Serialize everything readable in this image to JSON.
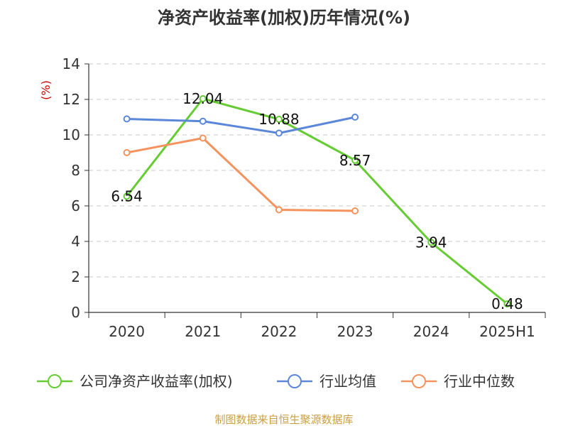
{
  "chart_data": {
    "type": "line",
    "title": "净资产收益率(加权)历年情况(%)",
    "ylabel": "(%)",
    "categories": [
      "2020",
      "2021",
      "2022",
      "2023",
      "2024",
      "2025H1"
    ],
    "ylim": [
      0,
      14
    ],
    "yticks": [
      0,
      2,
      4,
      6,
      8,
      10,
      12,
      14
    ],
    "grid": true,
    "legend_position": "bottom",
    "series": [
      {
        "name": "公司净资产收益率(加权)",
        "color": "#66cc33",
        "values": [
          6.54,
          12.04,
          10.88,
          8.57,
          3.94,
          0.48
        ],
        "labels": [
          "6.54",
          "12.04",
          "10.88",
          "8.57",
          "3.94",
          "0.48"
        ]
      },
      {
        "name": "行业均值",
        "color": "#5b87d9",
        "values": [
          10.9,
          10.77,
          10.1,
          11.0,
          null,
          null
        ]
      },
      {
        "name": "行业中位数",
        "color": "#f4935e",
        "values": [
          9.0,
          9.82,
          5.78,
          5.72,
          null,
          null
        ]
      }
    ],
    "source": "制图数据来自恒生聚源数据库"
  }
}
